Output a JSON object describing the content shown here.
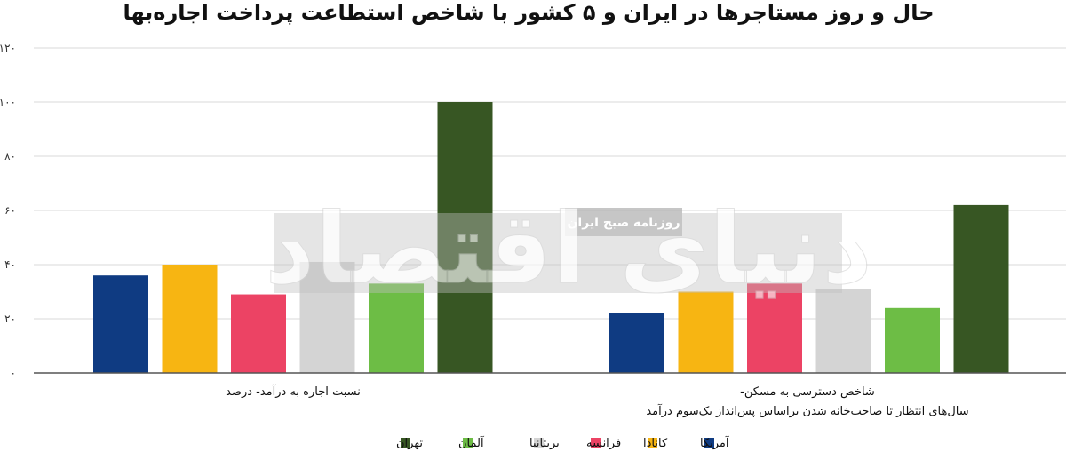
{
  "chart_data": {
    "type": "bar",
    "title": "حال و روز مستاجرها در ایران و ۵ کشور با شاخص استطاعت پرداخت اجاره‌بها",
    "categories": [
      [
        "نسبت اجاره به درآمد- درصد"
      ],
      [
        "شاخص دسترسی به مسکن-",
        "سال‌های انتظار تا صاحب‌خانه شدن براساس پس‌انداز یک‌سوم درآمد"
      ]
    ],
    "series": [
      {
        "name": "آمریکا",
        "color": "#0f3b82",
        "values": [
          36,
          22
        ]
      },
      {
        "name": "کانادا",
        "color": "#f7b512",
        "values": [
          40,
          30
        ]
      },
      {
        "name": "فرانسه",
        "color": "#ec4364",
        "values": [
          29,
          33
        ]
      },
      {
        "name": "بریتانیا",
        "color": "#d4d4d4",
        "values": [
          41,
          31
        ]
      },
      {
        "name": "آلمان",
        "color": "#6dbd45",
        "values": [
          33,
          24
        ]
      },
      {
        "name": "تهران",
        "color": "#375623",
        "values": [
          100,
          62
        ]
      }
    ],
    "yticks": [
      "۰",
      "۲۰",
      "۴۰",
      "۶۰",
      "۸۰",
      "۱۰۰",
      "۱۲۰"
    ],
    "ylim": [
      0,
      120
    ],
    "grid": true,
    "legend_position": "bottom-center",
    "watermark": {
      "logo_text": "دنیای اقتصاد",
      "tag": "روزنامه صبح ایران"
    }
  }
}
